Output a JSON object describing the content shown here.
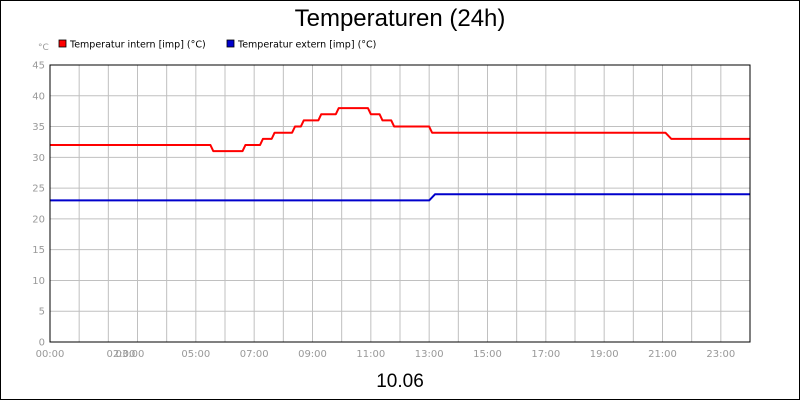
{
  "chart_data": {
    "type": "line",
    "title": "Temperaturen (24h)",
    "subtitle": "10.06",
    "yunit": "°C",
    "ylim": [
      0,
      45
    ],
    "yticks": [
      0,
      5,
      10,
      15,
      20,
      25,
      30,
      35,
      40,
      45
    ],
    "xlim": [
      0,
      24
    ],
    "xtick_hours": [
      0,
      1,
      2,
      3,
      4,
      5,
      6,
      7,
      8,
      9,
      10,
      11,
      12,
      13,
      14,
      15,
      16,
      17,
      18,
      19,
      20,
      21,
      22,
      23,
      24
    ],
    "xtick_labels": [
      {
        "hour": 0,
        "label": "00:00"
      },
      {
        "hour": 2,
        "label": "02:00"
      },
      {
        "hour": 3,
        "label": "03:00"
      },
      {
        "hour": 5,
        "label": "05:00"
      },
      {
        "hour": 7,
        "label": "07:00"
      },
      {
        "hour": 9,
        "label": "09:00"
      },
      {
        "hour": 11,
        "label": "11:00"
      },
      {
        "hour": 13,
        "label": "13:00"
      },
      {
        "hour": 15,
        "label": "15:00"
      },
      {
        "hour": 17,
        "label": "17:00"
      },
      {
        "hour": 19,
        "label": "19:00"
      },
      {
        "hour": 21,
        "label": "21:00"
      },
      {
        "hour": 23,
        "label": "23:00"
      }
    ],
    "grid": true,
    "legend_position": "top-left",
    "series": [
      {
        "name": "Temperatur intern [imp] (°C)",
        "color": "#ff0000",
        "points": [
          [
            0,
            32
          ],
          [
            5.5,
            32
          ],
          [
            5.6,
            31
          ],
          [
            6.6,
            31
          ],
          [
            6.7,
            32
          ],
          [
            7.2,
            32
          ],
          [
            7.3,
            33
          ],
          [
            7.6,
            33
          ],
          [
            7.7,
            34
          ],
          [
            8.3,
            34
          ],
          [
            8.4,
            35
          ],
          [
            8.6,
            35
          ],
          [
            8.7,
            36
          ],
          [
            9.2,
            36
          ],
          [
            9.3,
            37
          ],
          [
            9.8,
            37
          ],
          [
            9.9,
            38
          ],
          [
            10.9,
            38
          ],
          [
            11.0,
            37
          ],
          [
            11.3,
            37
          ],
          [
            11.4,
            36
          ],
          [
            11.7,
            36
          ],
          [
            11.8,
            35
          ],
          [
            13.0,
            35
          ],
          [
            13.1,
            34
          ],
          [
            21.1,
            34
          ],
          [
            21.3,
            33
          ],
          [
            24,
            33
          ]
        ]
      },
      {
        "name": "Temperatur extern [imp] (°C)",
        "color": "#0000cc",
        "points": [
          [
            0,
            23
          ],
          [
            13.0,
            23
          ],
          [
            13.2,
            24
          ],
          [
            24,
            24
          ]
        ]
      }
    ]
  }
}
